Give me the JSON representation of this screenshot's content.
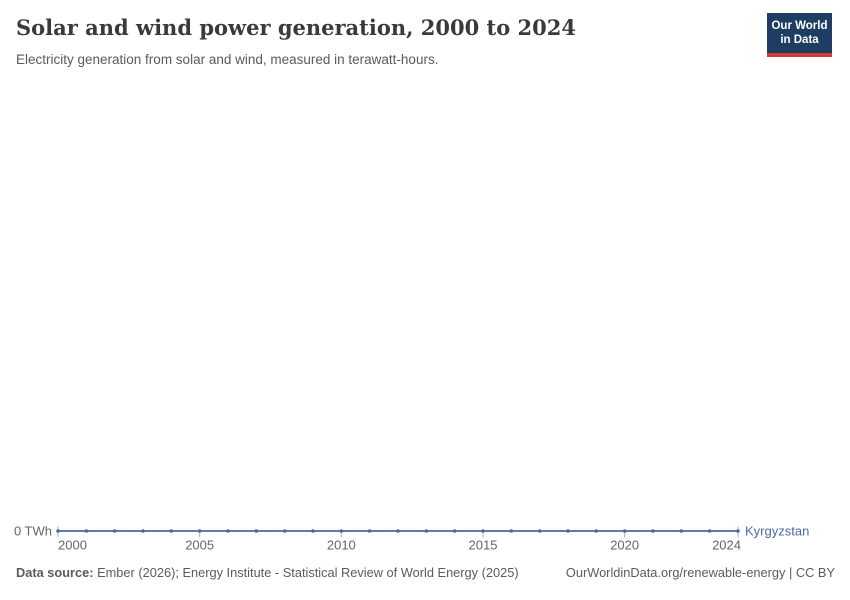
{
  "header": {
    "title": "Solar and wind power generation, 2000 to 2024",
    "subtitle": "Electricity generation from solar and wind, measured in terawatt-hours.",
    "logo": {
      "line1": "Our World",
      "line2": "in Data"
    }
  },
  "chart_data": {
    "type": "line",
    "title": "Solar and wind power generation, 2000 to 2024",
    "unit": "TWh",
    "x": [
      2000,
      2001,
      2002,
      2003,
      2004,
      2005,
      2006,
      2007,
      2008,
      2009,
      2010,
      2011,
      2012,
      2013,
      2014,
      2015,
      2016,
      2017,
      2018,
      2019,
      2020,
      2021,
      2022,
      2023,
      2024
    ],
    "series": [
      {
        "name": "Kyrgyzstan",
        "color": "#4C6A9C",
        "values": [
          0,
          0,
          0,
          0,
          0,
          0,
          0,
          0,
          0,
          0,
          0,
          0,
          0,
          0,
          0,
          0,
          0,
          0,
          0,
          0,
          0,
          0,
          0,
          0,
          0
        ]
      }
    ],
    "x_ticks": [
      2000,
      2005,
      2010,
      2015,
      2020,
      2024
    ],
    "x_tick_labels": [
      "2000",
      "2005",
      "2010",
      "2015",
      "2020",
      "2024"
    ],
    "y_tick_labels": [
      "0 TWh"
    ],
    "ylim": [
      0,
      1
    ],
    "grid": false,
    "legend_position": "end-of-line-label",
    "markers": true
  },
  "footer": {
    "source_bold": "Data source:",
    "source_rest": "Ember (2026); Energy Institute - Statistical Review of World Energy (2025)",
    "credit": "OurWorldinData.org/renewable-energy | CC BY"
  },
  "colors": {
    "accent": "#4C6A9C",
    "axis_text": "#666666",
    "tick_mark": "#a3b2cc",
    "logo_bg": "#1d3d63",
    "logo_red": "#d13c39",
    "title_text": "#3a3a3a",
    "muted_text": "#5b5b5b"
  }
}
